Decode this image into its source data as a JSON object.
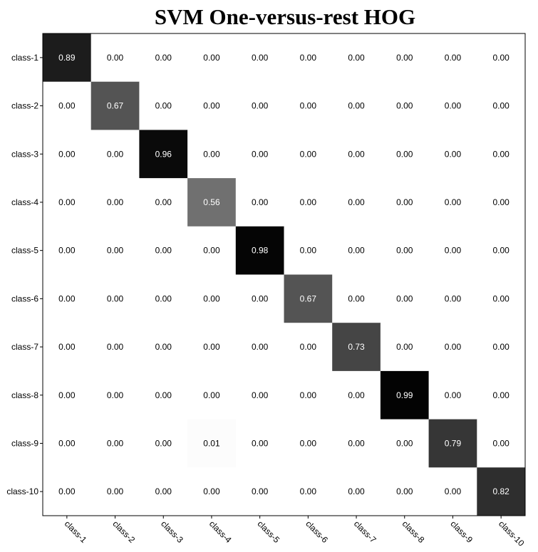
{
  "chart_data": {
    "type": "heatmap",
    "title": "SVM One-versus-rest HOG",
    "xlabel": "",
    "ylabel": "",
    "row_labels": [
      "class-1",
      "class-2",
      "class-3",
      "class-4",
      "class-5",
      "class-6",
      "class-7",
      "class-8",
      "class-9",
      "class-10"
    ],
    "col_labels": [
      "class-1",
      "class-2",
      "class-3",
      "class-4",
      "class-5",
      "class-6",
      "class-7",
      "class-8",
      "class-9",
      "class-10"
    ],
    "value_range": [
      0,
      1
    ],
    "colormap": "white-to-black (gray, reversed)",
    "grid": false,
    "values": [
      [
        0.89,
        0.0,
        0.0,
        0.0,
        0.0,
        0.0,
        0.0,
        0.0,
        0.0,
        0.0
      ],
      [
        0.0,
        0.67,
        0.0,
        0.0,
        0.0,
        0.0,
        0.0,
        0.0,
        0.0,
        0.0
      ],
      [
        0.0,
        0.0,
        0.96,
        0.0,
        0.0,
        0.0,
        0.0,
        0.0,
        0.0,
        0.0
      ],
      [
        0.0,
        0.0,
        0.0,
        0.56,
        0.0,
        0.0,
        0.0,
        0.0,
        0.0,
        0.0
      ],
      [
        0.0,
        0.0,
        0.0,
        0.0,
        0.98,
        0.0,
        0.0,
        0.0,
        0.0,
        0.0
      ],
      [
        0.0,
        0.0,
        0.0,
        0.0,
        0.0,
        0.67,
        0.0,
        0.0,
        0.0,
        0.0
      ],
      [
        0.0,
        0.0,
        0.0,
        0.0,
        0.0,
        0.0,
        0.73,
        0.0,
        0.0,
        0.0
      ],
      [
        0.0,
        0.0,
        0.0,
        0.0,
        0.0,
        0.0,
        0.0,
        0.99,
        0.0,
        0.0
      ],
      [
        0.0,
        0.0,
        0.0,
        0.01,
        0.0,
        0.0,
        0.0,
        0.0,
        0.79,
        0.0
      ],
      [
        0.0,
        0.0,
        0.0,
        0.0,
        0.0,
        0.0,
        0.0,
        0.0,
        0.0,
        0.82
      ]
    ]
  }
}
